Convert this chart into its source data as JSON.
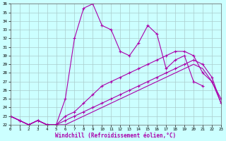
{
  "title": "",
  "xlabel": "Windchill (Refroidissement éolien,°C)",
  "x_values": [
    0,
    1,
    2,
    3,
    4,
    5,
    6,
    7,
    8,
    9,
    10,
    11,
    12,
    13,
    14,
    15,
    16,
    17,
    18,
    19,
    20,
    21,
    22,
    23
  ],
  "line1_y": [
    23.0,
    22.5,
    22.0,
    22.5,
    22.0,
    22.0,
    25.0,
    32.0,
    35.5,
    36.0,
    33.5,
    33.0,
    30.5,
    30.0,
    31.5,
    33.5,
    32.5,
    28.5,
    29.5,
    30.0,
    27.0,
    26.5,
    null,
    null
  ],
  "line2_y": [
    23.0,
    22.5,
    22.0,
    22.5,
    22.0,
    22.0,
    23.0,
    23.5,
    24.5,
    25.5,
    26.5,
    27.0,
    27.5,
    28.0,
    28.5,
    29.0,
    29.5,
    30.0,
    30.5,
    30.5,
    30.0,
    28.0,
    27.0,
    25.0
  ],
  "line3_y": [
    23.0,
    22.5,
    22.0,
    22.5,
    22.0,
    22.0,
    22.5,
    23.0,
    23.5,
    24.0,
    24.5,
    25.0,
    25.5,
    26.0,
    26.5,
    27.0,
    27.5,
    28.0,
    28.5,
    29.0,
    29.5,
    29.0,
    27.5,
    24.5
  ],
  "line4_y": [
    23.0,
    22.5,
    22.0,
    22.5,
    22.0,
    22.0,
    22.0,
    22.5,
    23.0,
    23.5,
    24.0,
    24.5,
    25.0,
    25.5,
    26.0,
    26.5,
    27.0,
    27.5,
    28.0,
    28.5,
    29.0,
    28.5,
    27.0,
    24.5
  ],
  "line_color": "#aa00aa",
  "bg_color": "#ccffff",
  "grid_color": "#aacccc",
  "ylim": [
    22,
    36
  ],
  "xlim": [
    0,
    23
  ],
  "yticks": [
    22,
    23,
    24,
    25,
    26,
    27,
    28,
    29,
    30,
    31,
    32,
    33,
    34,
    35,
    36
  ],
  "xtick_labels": [
    "0",
    "1",
    "2",
    "3",
    "4",
    "5",
    "6",
    "7",
    "8",
    "9",
    "10",
    "11",
    "12",
    "13",
    "14",
    "15",
    "16",
    "17",
    "18",
    "19",
    "20",
    "21",
    "22",
    "23"
  ]
}
